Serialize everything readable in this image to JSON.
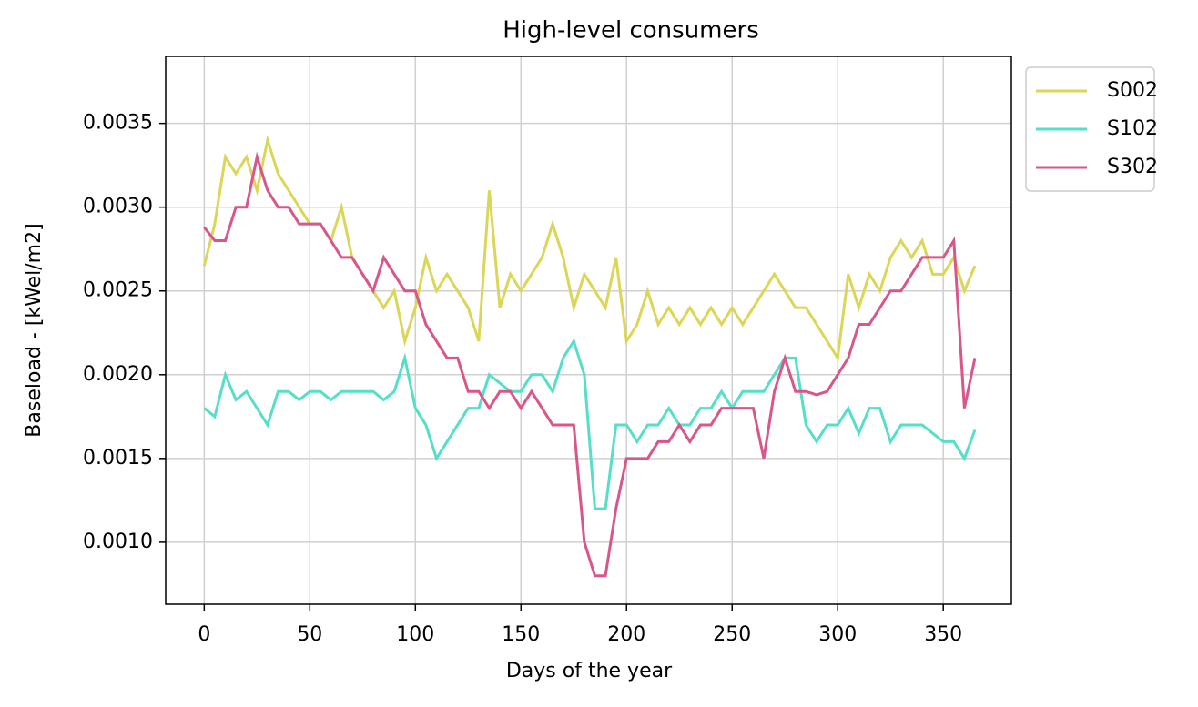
{
  "chart_data": {
    "type": "line",
    "title": "High-level consumers",
    "xlabel": "Days of the year",
    "ylabel": "Baseload - [kWel/m2]",
    "x": [
      0,
      5,
      10,
      15,
      20,
      25,
      30,
      35,
      40,
      45,
      50,
      55,
      60,
      65,
      70,
      75,
      80,
      85,
      90,
      95,
      100,
      105,
      110,
      115,
      120,
      125,
      130,
      135,
      140,
      145,
      150,
      155,
      160,
      165,
      170,
      175,
      180,
      185,
      190,
      195,
      200,
      205,
      210,
      215,
      220,
      225,
      230,
      235,
      240,
      245,
      250,
      255,
      260,
      265,
      270,
      275,
      280,
      285,
      290,
      295,
      300,
      305,
      310,
      315,
      320,
      325,
      330,
      335,
      340,
      345,
      350,
      355,
      360,
      365
    ],
    "series": [
      {
        "name": "S002",
        "color": "#dcd657",
        "values": [
          0.00265,
          0.0029,
          0.0033,
          0.0032,
          0.0033,
          0.0031,
          0.0034,
          0.0032,
          0.0031,
          0.003,
          0.0029,
          0.0029,
          0.0028,
          0.003,
          0.0027,
          0.0026,
          0.0025,
          0.0024,
          0.0025,
          0.0022,
          0.0024,
          0.0027,
          0.0025,
          0.0026,
          0.0025,
          0.0024,
          0.0022,
          0.0031,
          0.0024,
          0.0026,
          0.0025,
          0.0026,
          0.0027,
          0.0029,
          0.0027,
          0.0024,
          0.0026,
          0.0025,
          0.0024,
          0.0027,
          0.0022,
          0.0023,
          0.0025,
          0.0023,
          0.0024,
          0.0023,
          0.0024,
          0.0023,
          0.0024,
          0.0023,
          0.0024,
          0.0023,
          0.0024,
          0.0025,
          0.0026,
          0.0025,
          0.0024,
          0.0024,
          0.0023,
          0.0022,
          0.0021,
          0.0026,
          0.0024,
          0.0026,
          0.0025,
          0.0027,
          0.0028,
          0.0027,
          0.0028,
          0.0026,
          0.0026,
          0.0027,
          0.0025,
          0.00265
        ]
      },
      {
        "name": "S102",
        "color": "#55dfc8",
        "values": [
          0.0018,
          0.00175,
          0.002,
          0.00185,
          0.0019,
          0.0018,
          0.0017,
          0.0019,
          0.0019,
          0.00185,
          0.0019,
          0.0019,
          0.00185,
          0.0019,
          0.0019,
          0.0019,
          0.0019,
          0.00185,
          0.0019,
          0.0021,
          0.0018,
          0.0017,
          0.0015,
          0.0016,
          0.0017,
          0.0018,
          0.0018,
          0.002,
          0.00195,
          0.0019,
          0.0019,
          0.002,
          0.002,
          0.0019,
          0.0021,
          0.0022,
          0.002,
          0.0012,
          0.0012,
          0.0017,
          0.0017,
          0.0016,
          0.0017,
          0.0017,
          0.0018,
          0.0017,
          0.0017,
          0.0018,
          0.0018,
          0.0019,
          0.0018,
          0.0019,
          0.0019,
          0.0019,
          0.002,
          0.0021,
          0.0021,
          0.0017,
          0.0016,
          0.0017,
          0.0017,
          0.0018,
          0.00165,
          0.0018,
          0.0018,
          0.0016,
          0.0017,
          0.0017,
          0.0017,
          0.00165,
          0.0016,
          0.0016,
          0.0015,
          0.00167
        ]
      },
      {
        "name": "S302",
        "color": "#d9568a",
        "values": [
          0.00288,
          0.0028,
          0.0028,
          0.003,
          0.003,
          0.0033,
          0.0031,
          0.003,
          0.003,
          0.0029,
          0.0029,
          0.0029,
          0.0028,
          0.0027,
          0.0027,
          0.0026,
          0.0025,
          0.0027,
          0.0026,
          0.0025,
          0.0025,
          0.0023,
          0.0022,
          0.0021,
          0.0021,
          0.0019,
          0.0019,
          0.0018,
          0.0019,
          0.0019,
          0.0018,
          0.0019,
          0.0018,
          0.0017,
          0.0017,
          0.0017,
          0.001,
          0.0008,
          0.0008,
          0.0012,
          0.0015,
          0.0015,
          0.0015,
          0.0016,
          0.0016,
          0.0017,
          0.0016,
          0.0017,
          0.0017,
          0.0018,
          0.0018,
          0.0018,
          0.0018,
          0.0015,
          0.0019,
          0.0021,
          0.0019,
          0.0019,
          0.00188,
          0.0019,
          0.002,
          0.0021,
          0.0023,
          0.0023,
          0.0024,
          0.0025,
          0.0025,
          0.0026,
          0.0027,
          0.0027,
          0.0027,
          0.0028,
          0.0018,
          0.0021
        ]
      }
    ],
    "xlim": [
      -18.25,
      382.25
    ],
    "ylim": [
      0.00063,
      0.0039
    ],
    "xticks": [
      0,
      50,
      100,
      150,
      200,
      250,
      300,
      350
    ],
    "yticks": [
      {
        "value": 0.001,
        "label": "0.0010"
      },
      {
        "value": 0.0015,
        "label": "0.0015"
      },
      {
        "value": 0.002,
        "label": "0.0020"
      },
      {
        "value": 0.0025,
        "label": "0.0025"
      },
      {
        "value": 0.003,
        "label": "0.0030"
      },
      {
        "value": 0.0035,
        "label": "0.0035"
      }
    ],
    "grid": true,
    "legend": "outside upper right"
  }
}
